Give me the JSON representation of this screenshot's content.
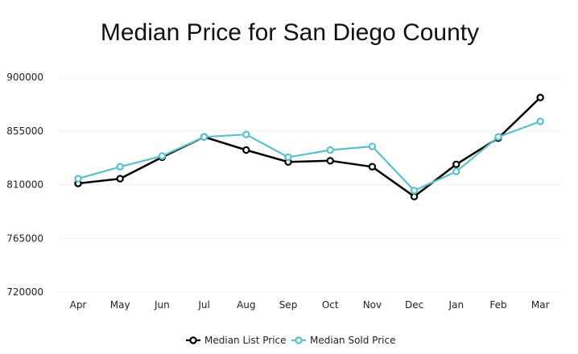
{
  "chart_data": {
    "type": "line",
    "title": "Median Price for San Diego County",
    "xlabel": "",
    "ylabel": "",
    "categories": [
      "Apr",
      "May",
      "Jun",
      "Jul",
      "Aug",
      "Sep",
      "Oct",
      "Nov",
      "Dec",
      "Jan",
      "Feb",
      "Mar"
    ],
    "ylim": [
      720000,
      900000
    ],
    "yticks": [
      "720000",
      "765000",
      "810000",
      "855000",
      "900000"
    ],
    "grid": true,
    "legend_position": "bottom",
    "series": [
      {
        "name": "Median List Price",
        "color": "#000000",
        "values": [
          811000,
          815000,
          833000,
          850000,
          839000,
          829000,
          830000,
          825000,
          800000,
          827000,
          849000,
          883000
        ]
      },
      {
        "name": "Median Sold Price",
        "color": "#5bbfcc",
        "values": [
          815000,
          825000,
          834000,
          850000,
          852000,
          833000,
          839000,
          842000,
          805000,
          821000,
          850000,
          863000
        ]
      }
    ]
  }
}
